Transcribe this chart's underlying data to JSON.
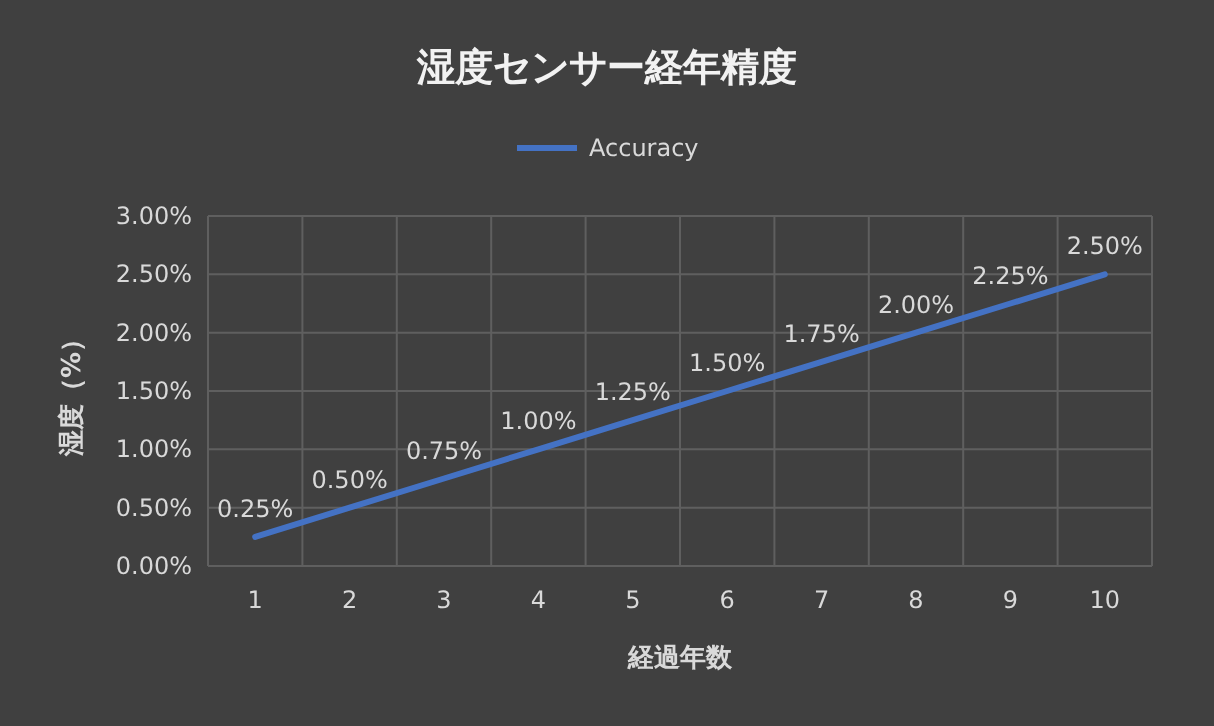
{
  "chart_data": {
    "type": "line",
    "title": "湿度センサー経年精度",
    "xlabel": "経過年数",
    "ylabel": "湿度（%）",
    "categories": [
      "1",
      "2",
      "3",
      "4",
      "5",
      "6",
      "7",
      "8",
      "9",
      "10"
    ],
    "series": [
      {
        "name": "Accuracy",
        "color": "#4472c4",
        "values": [
          0.25,
          0.5,
          0.75,
          1.0,
          1.25,
          1.5,
          1.75,
          2.0,
          2.25,
          2.5
        ],
        "value_labels": [
          "0.25%",
          "0.50%",
          "0.75%",
          "1.00%",
          "1.25%",
          "1.50%",
          "1.75%",
          "2.00%",
          "2.25%",
          "2.50%"
        ]
      }
    ],
    "ylim": [
      0,
      3
    ],
    "yticks": [
      {
        "value": 0,
        "label": "0.00%"
      },
      {
        "value": 0.5,
        "label": "0.50%"
      },
      {
        "value": 1,
        "label": "1.00%"
      },
      {
        "value": 1.5,
        "label": "1.50%"
      },
      {
        "value": 2,
        "label": "2.00%"
      },
      {
        "value": 2.5,
        "label": "2.50%"
      },
      {
        "value": 3,
        "label": "3.00%"
      }
    ],
    "grid": true,
    "legend": "top",
    "marker": "none",
    "line_style": "solid"
  }
}
